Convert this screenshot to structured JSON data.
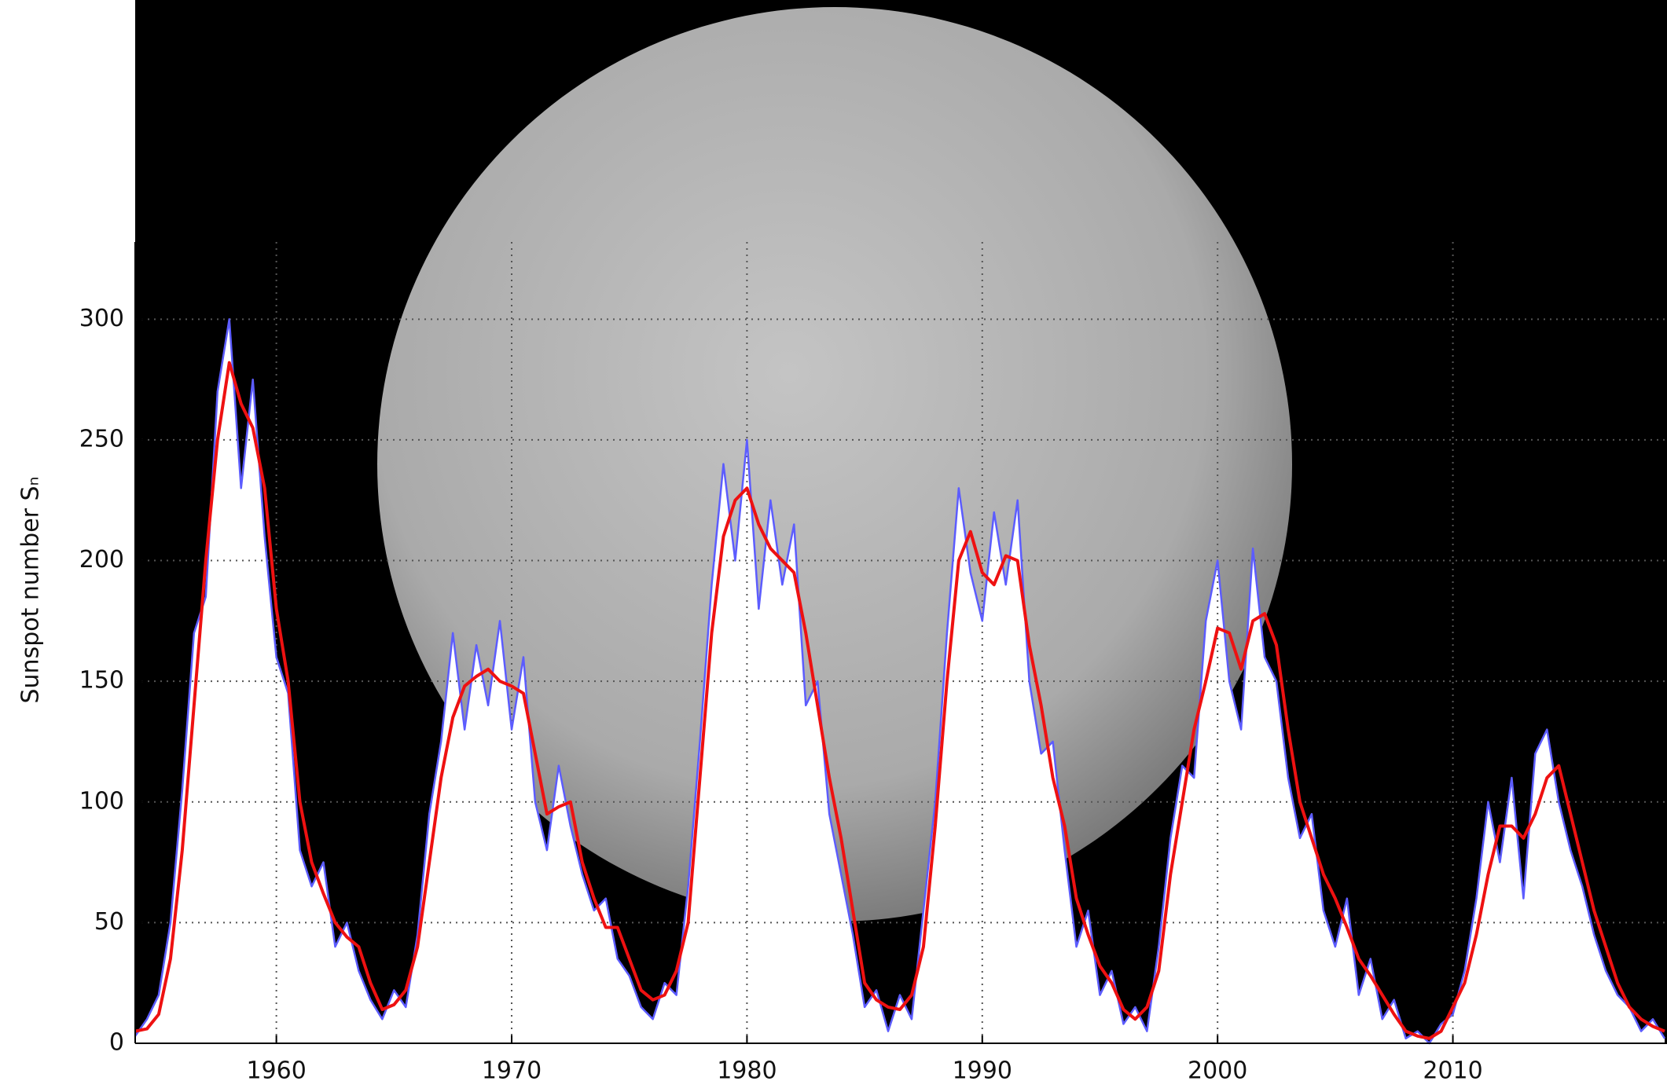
{
  "chart_data": {
    "type": "line",
    "ylabel": "Sunspot number Sₙ",
    "x": [
      1954,
      1954.5,
      1955,
      1955.5,
      1956,
      1956.5,
      1957,
      1957.5,
      1958,
      1958.5,
      1959,
      1959.5,
      1960,
      1960.5,
      1961,
      1961.5,
      1962,
      1962.5,
      1963,
      1963.5,
      1964,
      1964.5,
      1965,
      1965.5,
      1966,
      1966.5,
      1967,
      1967.5,
      1968,
      1968.5,
      1969,
      1969.5,
      1970,
      1970.5,
      1971,
      1971.5,
      1972,
      1972.5,
      1973,
      1973.5,
      1974,
      1974.5,
      1975,
      1975.5,
      1976,
      1976.5,
      1977,
      1977.5,
      1978,
      1978.5,
      1979,
      1979.5,
      1980,
      1980.5,
      1981,
      1981.5,
      1982,
      1982.5,
      1983,
      1983.5,
      1984,
      1984.5,
      1985,
      1985.5,
      1986,
      1986.5,
      1987,
      1987.5,
      1988,
      1988.5,
      1989,
      1989.5,
      1990,
      1990.5,
      1991,
      1991.5,
      1992,
      1992.5,
      1993,
      1993.5,
      1994,
      1994.5,
      1995,
      1995.5,
      1996,
      1996.5,
      1997,
      1997.5,
      1998,
      1998.5,
      1999,
      1999.5,
      2000,
      2000.5,
      2001,
      2001.5,
      2002,
      2002.5,
      2003,
      2003.5,
      2004,
      2004.5,
      2005,
      2005.5,
      2006,
      2006.5,
      2007,
      2007.5,
      2008,
      2008.5,
      2009,
      2009.5,
      2010,
      2010.5,
      2011,
      2011.5,
      2012,
      2012.5,
      2013,
      2013.5,
      2014,
      2014.5,
      2015,
      2015.5,
      2016,
      2016.5,
      2017,
      2017.5,
      2018,
      2018.5,
      2019
    ],
    "series": [
      {
        "color": "#5c5cff",
        "values": [
          3,
          10,
          20,
          50,
          105,
          170,
          185,
          270,
          300,
          230,
          275,
          210,
          160,
          145,
          80,
          65,
          75,
          40,
          50,
          30,
          18,
          10,
          22,
          15,
          45,
          95,
          125,
          170,
          130,
          165,
          140,
          175,
          130,
          160,
          100,
          80,
          115,
          90,
          70,
          55,
          60,
          35,
          28,
          15,
          10,
          25,
          20,
          65,
          125,
          190,
          240,
          200,
          250,
          180,
          225,
          190,
          215,
          140,
          150,
          95,
          70,
          45,
          15,
          22,
          5,
          20,
          10,
          55,
          100,
          170,
          230,
          195,
          175,
          220,
          190,
          225,
          150,
          120,
          125,
          80,
          40,
          55,
          20,
          30,
          8,
          15,
          5,
          40,
          85,
          115,
          110,
          175,
          200,
          150,
          130,
          205,
          160,
          150,
          110,
          85,
          95,
          55,
          40,
          60,
          20,
          35,
          10,
          18,
          2,
          5,
          0,
          8,
          12,
          30,
          60,
          100,
          75,
          110,
          60,
          120,
          130,
          100,
          80,
          65,
          45,
          30,
          20,
          15,
          5,
          10,
          2
        ]
      },
      {
        "color": "#ee1111",
        "values": [
          5,
          6,
          12,
          35,
          80,
          140,
          200,
          250,
          282,
          265,
          255,
          230,
          180,
          150,
          100,
          75,
          62,
          50,
          44,
          40,
          25,
          14,
          16,
          22,
          40,
          75,
          110,
          135,
          148,
          152,
          155,
          150,
          148,
          145,
          120,
          95,
          98,
          100,
          75,
          60,
          48,
          48,
          35,
          22,
          18,
          20,
          30,
          50,
          110,
          170,
          210,
          225,
          230,
          215,
          205,
          200,
          195,
          170,
          140,
          110,
          85,
          55,
          25,
          18,
          15,
          14,
          20,
          40,
          90,
          150,
          200,
          212,
          195,
          190,
          202,
          200,
          165,
          140,
          110,
          90,
          60,
          45,
          32,
          25,
          14,
          10,
          15,
          30,
          70,
          100,
          130,
          150,
          172,
          170,
          155,
          175,
          178,
          165,
          130,
          100,
          85,
          70,
          60,
          48,
          35,
          28,
          20,
          12,
          5,
          3,
          2,
          5,
          15,
          25,
          45,
          70,
          90,
          90,
          85,
          95,
          110,
          115,
          95,
          75,
          55,
          40,
          25,
          15,
          10,
          7,
          5
        ]
      }
    ],
    "xlim": [
      1954,
      2019.1
    ],
    "ylim": [
      0,
      332
    ],
    "xticks": [
      1960,
      1970,
      1980,
      1990,
      2000,
      2010
    ],
    "yticks": [
      0,
      50,
      100,
      150,
      200,
      250,
      300
    ],
    "grid": true
  }
}
